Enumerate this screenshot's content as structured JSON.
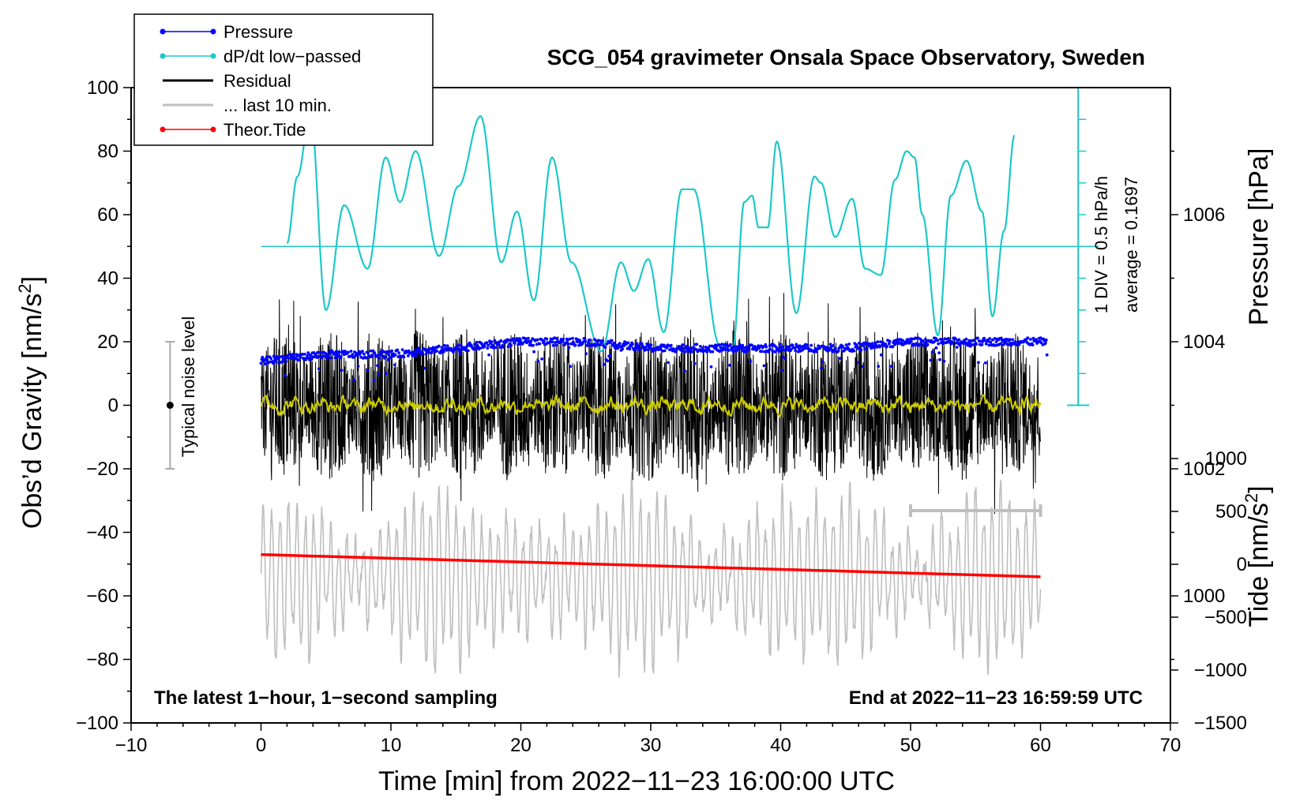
{
  "chart_data": {
    "type": "line",
    "title": "SCG_054 gravimeter Onsala Space Observatory, Sweden",
    "xlabel": "Time [min] from 2022−11−23 16:00:00 UTC",
    "ylabel_left": "Obs’d Gravity [nm/s",
    "ylabel_left_sup": "2",
    "ylabel_left_end": "]",
    "ylabel_right_pressure": "Pressure [hPa]",
    "ylabel_right_tide": "Tide [nm/s",
    "ylabel_right_tide_sup": "2",
    "ylabel_right_tide_end": "]",
    "xlim": [
      -10,
      70
    ],
    "ylim": [
      -100,
      100
    ],
    "pressure_lim": [
      998,
      1008
    ],
    "tide_lim": [
      -1500,
      1000
    ],
    "x_ticks": [
      "−10",
      "0",
      "10",
      "20",
      "30",
      "40",
      "50",
      "60",
      "70"
    ],
    "x_tick_values": [
      -10,
      0,
      10,
      20,
      30,
      40,
      50,
      60,
      70
    ],
    "y_ticks": [
      "100",
      "80",
      "60",
      "40",
      "20",
      "0",
      "−20",
      "−40",
      "−60",
      "−80",
      "−100"
    ],
    "y_tick_values": [
      100,
      80,
      60,
      40,
      20,
      0,
      -20,
      -40,
      -60,
      -80,
      -100
    ],
    "pressure_ticks": [
      "1006",
      "1004",
      "1002",
      "1000"
    ],
    "pressure_tick_values": [
      1006,
      1004,
      1002,
      1000
    ],
    "tide_ticks": [
      "1000",
      "500",
      "0",
      "−500",
      "−1000",
      "−1500"
    ],
    "tide_tick_values": [
      1000,
      500,
      0,
      -500,
      -1000,
      -1500
    ],
    "annotation_left": "The latest 1−hour, 1−second sampling",
    "annotation_right": "End at 2022−11−23 16:59:59 UTC",
    "noise_label": "Typical noise level",
    "noise_range": [
      -20,
      20
    ],
    "noise_x": -7,
    "dpdt_scale_label": "1 DIV = 0.5 hPa/h",
    "dpdt_average_label": "average = 0.1697",
    "dpdt_baseline_gravity": 50,
    "colors": {
      "pressure": "#0000ff",
      "dpdt": "#1ec8c8",
      "residual": "#000000",
      "last10": "#bfbfbf",
      "tide": "#ff0000",
      "smooth": "#cccc00"
    },
    "legend": [
      {
        "label": "Pressure",
        "color": "#0000ff",
        "marker": true
      },
      {
        "label": "dP/dt low−passed",
        "color": "#1ec8c8",
        "marker": true
      },
      {
        "label": "Residual",
        "color": "#000000",
        "marker": false
      },
      {
        "label": "... last 10 min.",
        "color": "#bfbfbf",
        "marker": false
      },
      {
        "label": "Theor.Tide",
        "color": "#ff0000",
        "marker": true
      }
    ],
    "series": [
      {
        "name": "Pressure",
        "unit": "hPa",
        "x": [
          0,
          5,
          10,
          15,
          20,
          25,
          30,
          35,
          40,
          45,
          50,
          55,
          60
        ],
        "values": [
          1003.7,
          1003.8,
          1003.8,
          1003.9,
          1004.0,
          1004.0,
          1003.9,
          1003.9,
          1003.9,
          1003.9,
          1004.0,
          1004.0,
          1004.0
        ]
      },
      {
        "name": "dP/dt low-passed",
        "unit": "gravity-axis",
        "x": [
          2.0,
          2.8,
          3.8,
          5.0,
          6.4,
          8.2,
          9.6,
          10.7,
          11.9,
          13.7,
          15.2,
          16.9,
          18.5,
          19.7,
          21.0,
          22.4,
          23.9,
          26.2,
          27.7,
          28.7,
          29.8,
          31.0,
          32.4,
          33.3,
          35.3,
          36.3,
          37.2,
          37.8,
          38.3,
          39.0,
          39.7,
          41.2,
          42.6,
          43.1,
          44.2,
          45.5,
          46.5,
          47.7,
          48.8,
          49.7,
          50.3,
          50.9,
          52.1,
          53.1,
          54.3,
          55.5,
          56.3,
          57.2,
          58.0
        ],
        "values": [
          51,
          72,
          92,
          30,
          63,
          43,
          78,
          64,
          80,
          47,
          69,
          91,
          45,
          61,
          33,
          78,
          45,
          17,
          45,
          36,
          46,
          23,
          68,
          68,
          19,
          17,
          64,
          66,
          56,
          56,
          83,
          29,
          72,
          70,
          53,
          65,
          43,
          41,
          71,
          80,
          78,
          60,
          22,
          66,
          77,
          61,
          28,
          55,
          85
        ]
      },
      {
        "name": "Residual",
        "unit": "nm/s2",
        "x": [
          0,
          60
        ],
        "values": [
          0,
          0
        ],
        "envelope": [
          -25,
          25
        ]
      },
      {
        "name": "... last 10 min.",
        "unit": "nm/s2",
        "x_range": [
          50,
          60
        ]
      },
      {
        "name": "Theor.Tide",
        "unit": "nm/s2",
        "x": [
          0,
          60
        ],
        "values": [
          -47,
          -54
        ]
      }
    ]
  }
}
